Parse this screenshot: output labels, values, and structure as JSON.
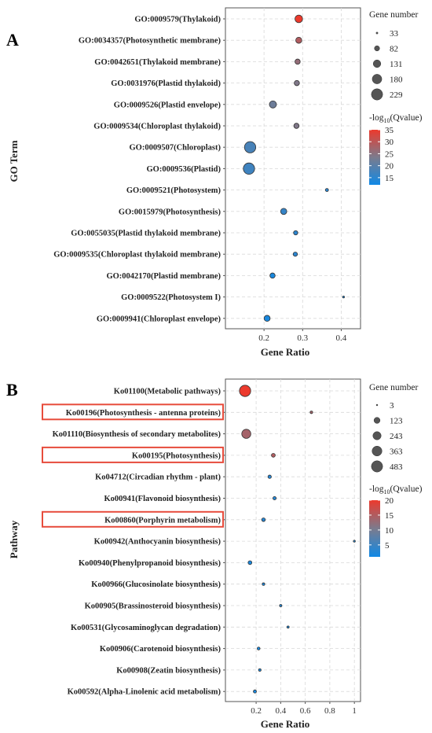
{
  "colors": {
    "low": "#1089e6",
    "mid": "#7b7b8d",
    "high": "#ec3a2d",
    "highlight": "#e74c3c",
    "grid": "#d9d9d9"
  },
  "chart_data": [
    {
      "panel": "A",
      "type": "scatter",
      "xlabel": "Gene Ratio",
      "ylabel": "GO Term",
      "xlim": [
        0.1,
        0.45
      ],
      "xticks": [
        0.2,
        0.3,
        0.4
      ],
      "size_legend": {
        "title": "Gene number",
        "values": [
          33,
          82,
          131,
          180,
          229
        ]
      },
      "color_legend": {
        "title": "-log10(Qvalue)",
        "ticks": [
          35,
          30,
          25,
          20,
          15
        ],
        "range": [
          12,
          35
        ]
      },
      "points": [
        {
          "term": "GO:0009579(Thylakoid)",
          "x": 0.29,
          "size": 131,
          "q": 35,
          "highlight": false
        },
        {
          "term": "GO:0034357(Photosynthetic membrane)",
          "x": 0.29,
          "size": 98,
          "q": 29,
          "highlight": false
        },
        {
          "term": "GO:0042651(Thylakoid membrane)",
          "x": 0.287,
          "size": 82,
          "q": 26,
          "highlight": false
        },
        {
          "term": "GO:0031976(Plastid thylakoid)",
          "x": 0.285,
          "size": 82,
          "q": 24,
          "highlight": false
        },
        {
          "term": "GO:0009526(Plastid envelope)",
          "x": 0.223,
          "size": 120,
          "q": 22,
          "highlight": false
        },
        {
          "term": "GO:0009534(Chloroplast thylakoid)",
          "x": 0.284,
          "size": 82,
          "q": 24,
          "highlight": false
        },
        {
          "term": "GO:0009507(Chloroplast)",
          "x": 0.164,
          "size": 229,
          "q": 18,
          "highlight": false
        },
        {
          "term": "GO:0009536(Plastid)",
          "x": 0.161,
          "size": 229,
          "q": 17,
          "highlight": false
        },
        {
          "term": "GO:0009521(Photosystem)",
          "x": 0.363,
          "size": 48,
          "q": 15,
          "highlight": false
        },
        {
          "term": "GO:0015979(Photosynthesis)",
          "x": 0.251,
          "size": 100,
          "q": 16,
          "highlight": false
        },
        {
          "term": "GO:0055035(Plastid thylakoid membrane)",
          "x": 0.282,
          "size": 66,
          "q": 15,
          "highlight": false
        },
        {
          "term": "GO:0009535(Chloroplast thylakoid membrane)",
          "x": 0.281,
          "size": 66,
          "q": 15,
          "highlight": false
        },
        {
          "term": "GO:0042170(Plastid membrane)",
          "x": 0.222,
          "size": 82,
          "q": 13,
          "highlight": false
        },
        {
          "term": "GO:0009522(Photosystem I)",
          "x": 0.406,
          "size": 33,
          "q": 13,
          "highlight": false
        },
        {
          "term": "GO:0009941(Chloroplast envelope)",
          "x": 0.208,
          "size": 98,
          "q": 13,
          "highlight": false
        }
      ]
    },
    {
      "panel": "B",
      "type": "scatter",
      "xlabel": "Gene Ratio",
      "ylabel": "Pathway",
      "xlim": [
        -0.05,
        1.05
      ],
      "xticks": [
        0.2,
        0.4,
        0.6,
        0.8,
        1
      ],
      "size_legend": {
        "title": "Gene number",
        "values": [
          3,
          123,
          243,
          363,
          483
        ]
      },
      "color_legend": {
        "title": "-log10(Qvalue)",
        "ticks": [
          20,
          15,
          10,
          5
        ],
        "range": [
          1,
          20
        ]
      },
      "points": [
        {
          "term": "Ko01100(Metabolic pathways)",
          "x": 0.11,
          "size": 483,
          "q": 20,
          "highlight": false
        },
        {
          "term": "Ko00196(Photosynthesis - antenna proteins)",
          "x": 0.65,
          "size": 15,
          "q": 14,
          "highlight": true
        },
        {
          "term": "Ko01110(Biosynthesis of secondary metabolites)",
          "x": 0.12,
          "size": 300,
          "q": 14,
          "highlight": false
        },
        {
          "term": "Ko00195(Photosynthesis)",
          "x": 0.34,
          "size": 40,
          "q": 15,
          "highlight": true
        },
        {
          "term": "Ko04712(Circadian rhythm - plant)",
          "x": 0.31,
          "size": 30,
          "q": 3,
          "highlight": false
        },
        {
          "term": "Ko00941(Flavonoid biosynthesis)",
          "x": 0.35,
          "size": 28,
          "q": 3,
          "highlight": false
        },
        {
          "term": "Ko00860(Porphyrin metabolism)",
          "x": 0.26,
          "size": 35,
          "q": 3,
          "highlight": true
        },
        {
          "term": "Ko00942(Anthocyanin biosynthesis)",
          "x": 1.0,
          "size": 6,
          "q": 2,
          "highlight": false
        },
        {
          "term": "Ko00940(Phenylpropanoid biosynthesis)",
          "x": 0.15,
          "size": 40,
          "q": 2,
          "highlight": false
        },
        {
          "term": "Ko00966(Glucosinolate biosynthesis)",
          "x": 0.26,
          "size": 15,
          "q": 2,
          "highlight": false
        },
        {
          "term": "Ko00905(Brassinosteroid biosynthesis)",
          "x": 0.4,
          "size": 12,
          "q": 2,
          "highlight": false
        },
        {
          "term": "Ko00531(Glycosaminoglycan degradation)",
          "x": 0.46,
          "size": 10,
          "q": 2,
          "highlight": false
        },
        {
          "term": "Ko00906(Carotenoid biosynthesis)",
          "x": 0.22,
          "size": 20,
          "q": 2,
          "highlight": false
        },
        {
          "term": "Ko00908(Zeatin biosynthesis)",
          "x": 0.23,
          "size": 15,
          "q": 2,
          "highlight": false
        },
        {
          "term": "Ko00592(Alpha-Linolenic acid metabolism)",
          "x": 0.19,
          "size": 25,
          "q": 2,
          "highlight": false
        }
      ]
    }
  ]
}
